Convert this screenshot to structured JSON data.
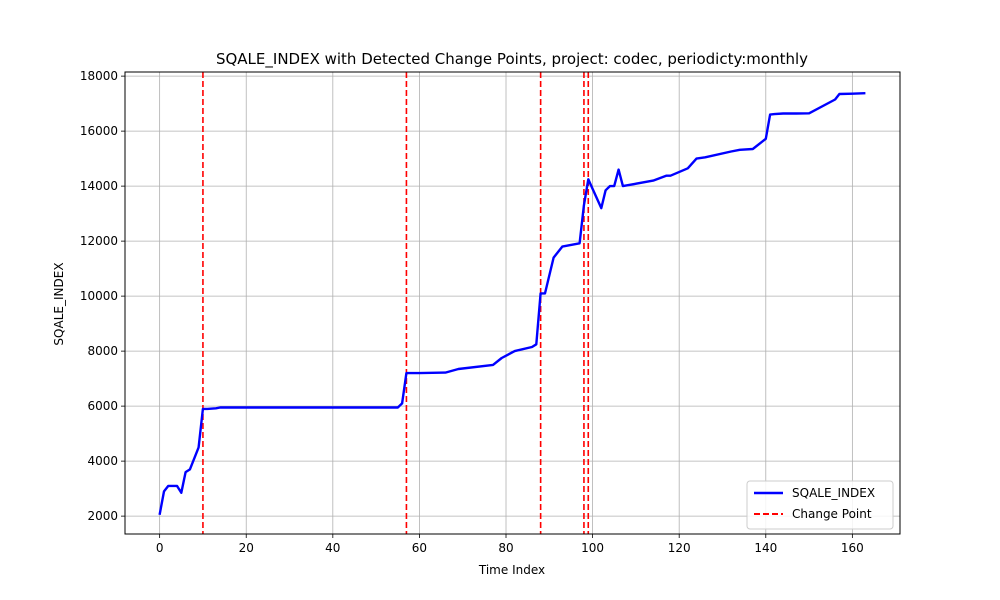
{
  "chart_data": {
    "type": "line",
    "title": "SQALE_INDEX with Detected Change Points, project: codec, periodicty:monthly",
    "xlabel": "Time Index",
    "ylabel": "SQALE_INDEX",
    "xlim": [
      -8,
      171
    ],
    "ylim": [
      1350,
      18150
    ],
    "xticks": [
      0,
      20,
      40,
      60,
      80,
      100,
      120,
      140,
      160
    ],
    "yticks": [
      2000,
      4000,
      6000,
      8000,
      10000,
      12000,
      14000,
      16000,
      18000
    ],
    "grid": true,
    "legend_position": "lower-right",
    "legend": [
      {
        "label": "SQALE_INDEX",
        "style": "solid",
        "color": "#0000ff"
      },
      {
        "label": "Change Point",
        "style": "dashed",
        "color": "#ff0000"
      }
    ],
    "series": [
      {
        "name": "SQALE_INDEX",
        "color": "#0000ff",
        "x": [
          0,
          1,
          2,
          4,
          5,
          6,
          7,
          9,
          10,
          11,
          13,
          14,
          20,
          30,
          40,
          50,
          55,
          56,
          57,
          60,
          66,
          69,
          77,
          79,
          82,
          86,
          87,
          88,
          89,
          91,
          93,
          97,
          98,
          99,
          100,
          102,
          103,
          104,
          105,
          106,
          107,
          114,
          117,
          118,
          122,
          124,
          126,
          132,
          134,
          137,
          140,
          141,
          142,
          144,
          147,
          150,
          156,
          157,
          160,
          163
        ],
        "y": [
          2050,
          2900,
          3100,
          3100,
          2850,
          3600,
          3700,
          4500,
          5900,
          5900,
          5920,
          5950,
          5950,
          5950,
          5950,
          5950,
          5950,
          6100,
          7200,
          7200,
          7220,
          7350,
          7500,
          7750,
          8000,
          8150,
          8250,
          10100,
          10100,
          11400,
          11800,
          11920,
          13300,
          14250,
          13900,
          13200,
          13850,
          14000,
          14000,
          14600,
          14000,
          14200,
          14380,
          14380,
          14650,
          15000,
          15050,
          15260,
          15320,
          15350,
          15720,
          16600,
          16620,
          16640,
          16640,
          16650,
          17150,
          17350,
          17360,
          17380
        ]
      }
    ],
    "change_points": {
      "name": "Change Point",
      "color": "#ff0000",
      "x": [
        10,
        57,
        88,
        98,
        99
      ]
    }
  }
}
